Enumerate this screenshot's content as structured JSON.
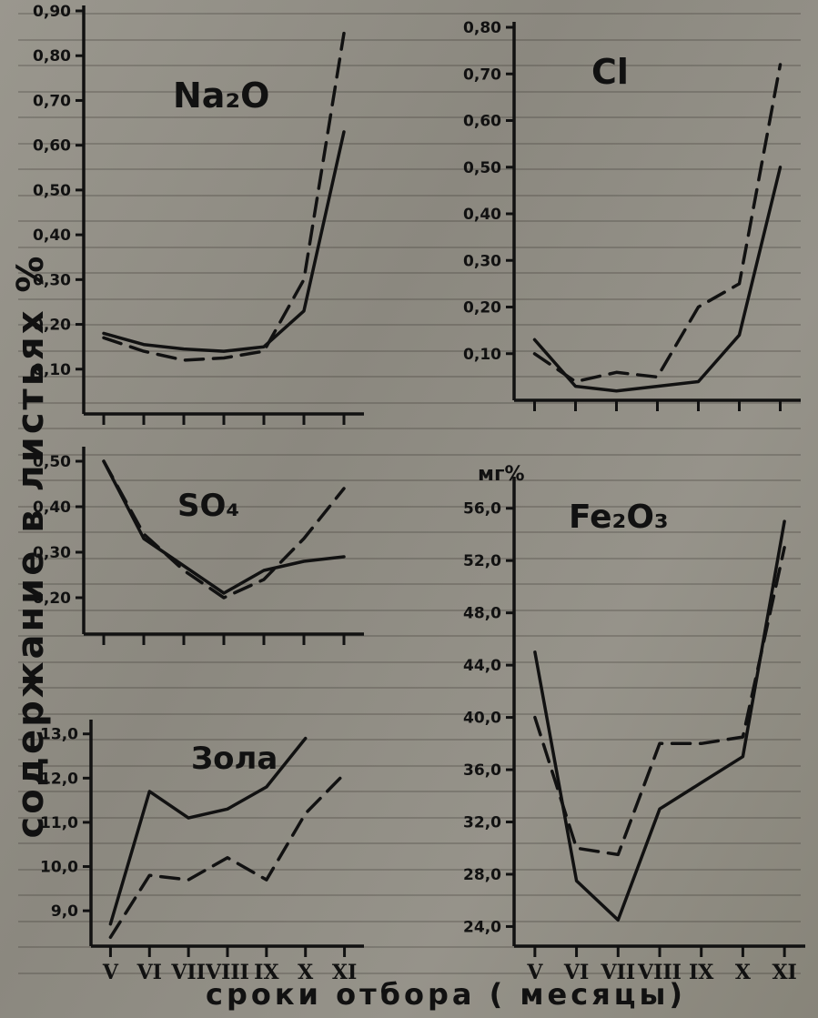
{
  "ylabel": "содержание  в  листьях  %",
  "xlabel": "сроки   отбора   ( месяцы)",
  "colors": {
    "ink": "#111111",
    "paper": "#8f8c84"
  },
  "chart_data": [
    {
      "type": "line",
      "title": "Na₂O",
      "categories": [
        "V",
        "VI",
        "VII",
        "VIII",
        "IX",
        "X",
        "XI"
      ],
      "xlim": [
        0,
        7
      ],
      "ylim": [
        0,
        0.9
      ],
      "yticks": [
        "0,10",
        "0,20",
        "0,30",
        "0,40",
        "0,50",
        "0,60",
        "0,70",
        "0,80",
        "0,90"
      ],
      "series": [
        {
          "style": "solid",
          "points": [
            [
              0,
              0.18
            ],
            [
              1,
              0.155
            ],
            [
              2,
              0.145
            ],
            [
              3,
              0.14
            ],
            [
              4,
              0.15
            ],
            [
              5,
              0.23
            ],
            [
              6,
              0.63
            ]
          ]
        },
        {
          "style": "dashed",
          "points": [
            [
              0,
              0.17
            ],
            [
              1,
              0.14
            ],
            [
              2,
              0.12
            ],
            [
              3,
              0.125
            ],
            [
              4,
              0.14
            ],
            [
              5,
              0.3
            ],
            [
              6,
              0.85
            ]
          ]
        }
      ]
    },
    {
      "type": "line",
      "title": "Cl",
      "categories": [
        "V",
        "VI",
        "VII",
        "VIII",
        "IX",
        "X",
        "XI"
      ],
      "xlim": [
        0,
        7
      ],
      "ylim": [
        0,
        0.8
      ],
      "yticks": [
        "0,10",
        "0,20",
        "0,30",
        "0,40",
        "0,50",
        "0,60",
        "0,70",
        "0,80"
      ],
      "series": [
        {
          "style": "solid",
          "points": [
            [
              0,
              0.13
            ],
            [
              1,
              0.03
            ],
            [
              2,
              0.02
            ],
            [
              3,
              0.03
            ],
            [
              4,
              0.04
            ],
            [
              5,
              0.14
            ],
            [
              6,
              0.5
            ]
          ]
        },
        {
          "style": "dashed",
          "points": [
            [
              0,
              0.1
            ],
            [
              1,
              0.04
            ],
            [
              2,
              0.06
            ],
            [
              3,
              0.05
            ],
            [
              4,
              0.2
            ],
            [
              5,
              0.25
            ],
            [
              6,
              0.72
            ]
          ]
        }
      ]
    },
    {
      "type": "line",
      "title": "SO₄",
      "categories": [
        "V",
        "VI",
        "VII",
        "VIII",
        "IX",
        "X",
        "XI"
      ],
      "xlim": [
        0,
        7
      ],
      "ylim": [
        0.12,
        0.52
      ],
      "yticks": [
        "0,20",
        "0,30",
        "0,40",
        "0,50"
      ],
      "series": [
        {
          "style": "solid",
          "points": [
            [
              0,
              0.5
            ],
            [
              1,
              0.33
            ],
            [
              2,
              0.27
            ],
            [
              3,
              0.21
            ],
            [
              4,
              0.26
            ],
            [
              5,
              0.28
            ],
            [
              6,
              0.29
            ]
          ]
        },
        {
          "style": "dashed",
          "points": [
            [
              0,
              0.5
            ],
            [
              1,
              0.34
            ],
            [
              2,
              0.26
            ],
            [
              3,
              0.2
            ],
            [
              4,
              0.24
            ],
            [
              5,
              0.33
            ],
            [
              6,
              0.44
            ]
          ]
        }
      ]
    },
    {
      "type": "line",
      "title": "Зола",
      "categories": [
        "V",
        "VI",
        "VII",
        "VIII",
        "IX",
        "X",
        "XI"
      ],
      "xlim": [
        0,
        7
      ],
      "ylim": [
        8.2,
        13.2
      ],
      "yticks": [
        "9,0",
        "10,0",
        "11,0",
        "12,0",
        "13,0"
      ],
      "series": [
        {
          "style": "solid",
          "points": [
            [
              0,
              8.7
            ],
            [
              1,
              11.7
            ],
            [
              2,
              11.1
            ],
            [
              3,
              11.3
            ],
            [
              4,
              11.8
            ],
            [
              5,
              12.9
            ]
          ]
        },
        {
          "style": "dashed",
          "points": [
            [
              0,
              8.4
            ],
            [
              1,
              9.8
            ],
            [
              2,
              9.7
            ],
            [
              3,
              10.2
            ],
            [
              4,
              9.7
            ],
            [
              5,
              11.2
            ],
            [
              6,
              12.1
            ]
          ]
        }
      ]
    },
    {
      "type": "line",
      "title": "Fe₂O₃",
      "unit": "мг%",
      "categories": [
        "V",
        "VI",
        "VII",
        "VIII",
        "IX",
        "X",
        "XI"
      ],
      "xlim": [
        0,
        7
      ],
      "ylim": [
        22.5,
        58
      ],
      "yticks": [
        "24,0",
        "28,0",
        "32,0",
        "36,0",
        "40,0",
        "44,0",
        "48,0",
        "52,0",
        "56,0"
      ],
      "series": [
        {
          "style": "solid",
          "points": [
            [
              0,
              45
            ],
            [
              1,
              27.5
            ],
            [
              2,
              24.5
            ],
            [
              3,
              33
            ],
            [
              4,
              35
            ],
            [
              5,
              37
            ],
            [
              6,
              55
            ]
          ]
        },
        {
          "style": "dashed",
          "points": [
            [
              0,
              40
            ],
            [
              1,
              30
            ],
            [
              2,
              29.5
            ],
            [
              3,
              38
            ],
            [
              4,
              38
            ],
            [
              5,
              38.5
            ],
            [
              6,
              53
            ]
          ]
        }
      ]
    }
  ]
}
